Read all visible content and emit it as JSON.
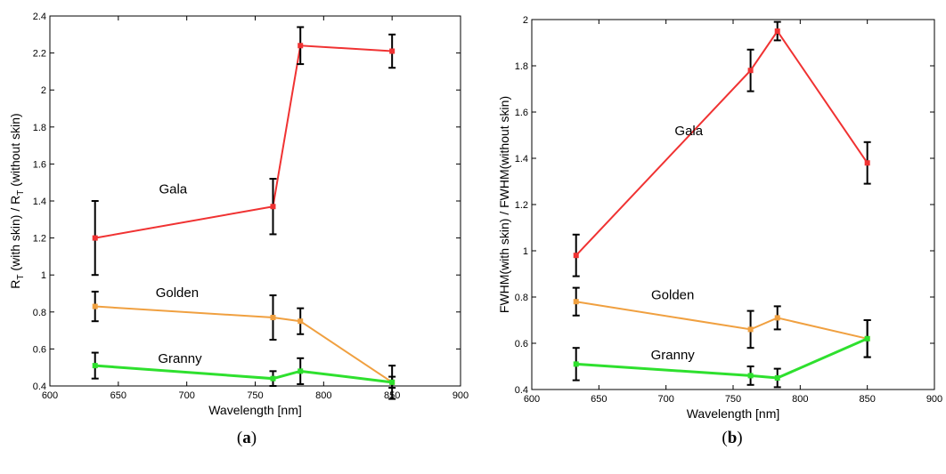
{
  "chart_data": [
    {
      "type": "line",
      "panel_label": "a",
      "xlabel": "Wavelength [nm]",
      "ylabel": "R_T (with skin) / R_T (without skin)",
      "ylabel_parts": {
        "r1": "R",
        "s1": "T",
        "mid": " (with skin) / R",
        "s2": "T",
        "end": " (without skin)"
      },
      "xlim": [
        600,
        900
      ],
      "ylim": [
        0.4,
        2.4
      ],
      "xticks": [
        "600",
        "650",
        "700",
        "750",
        "800",
        "850",
        "900"
      ],
      "yticks": [
        "0.4",
        "0.6",
        "0.8",
        "1",
        "1.2",
        "1.4",
        "1.6",
        "1.8",
        "2",
        "2.2",
        "2.4"
      ],
      "grid": false,
      "series": [
        {
          "name": "Gala",
          "color": "#f03232",
          "label_at": [
            690,
            1.44
          ],
          "points": [
            {
              "x": 633,
              "y": 1.2,
              "err": 0.2
            },
            {
              "x": 763,
              "y": 1.37,
              "err": 0.15
            },
            {
              "x": 783,
              "y": 2.24,
              "err": 0.1
            },
            {
              "x": 850,
              "y": 2.21,
              "err": 0.09
            }
          ]
        },
        {
          "name": "Golden",
          "color": "#f0a040",
          "label_at": [
            693,
            0.88
          ],
          "points": [
            {
              "x": 633,
              "y": 0.83,
              "err": 0.08
            },
            {
              "x": 763,
              "y": 0.77,
              "err": 0.12
            },
            {
              "x": 783,
              "y": 0.75,
              "err": 0.07
            },
            {
              "x": 850,
              "y": 0.42,
              "err": 0.09
            }
          ]
        },
        {
          "name": "Granny",
          "color": "#2ee02e",
          "label_at": [
            695,
            0.525
          ],
          "points": [
            {
              "x": 633,
              "y": 0.51,
              "err": 0.07
            },
            {
              "x": 763,
              "y": 0.44,
              "err": 0.04
            },
            {
              "x": 783,
              "y": 0.48,
              "err": 0.07
            },
            {
              "x": 850,
              "y": 0.42,
              "err": 0.03
            }
          ]
        }
      ]
    },
    {
      "type": "line",
      "panel_label": "b",
      "xlabel": "Wavelength [nm]",
      "ylabel": "FWHM(with skin) / FWHM(without skin)",
      "xlim": [
        600,
        900
      ],
      "ylim": [
        0.4,
        2
      ],
      "xticks": [
        "600",
        "650",
        "700",
        "750",
        "800",
        "850",
        "900"
      ],
      "yticks": [
        "0.4",
        "0.6",
        "0.8",
        "1",
        "1.2",
        "1.4",
        "1.6",
        "1.8",
        "2"
      ],
      "grid": false,
      "series": [
        {
          "name": "Gala",
          "color": "#f03232",
          "label_at": [
            717,
            1.5
          ],
          "points": [
            {
              "x": 633,
              "y": 0.98,
              "err": 0.09
            },
            {
              "x": 763,
              "y": 1.78,
              "err": 0.09
            },
            {
              "x": 783,
              "y": 1.95,
              "err": 0.04
            },
            {
              "x": 850,
              "y": 1.38,
              "err": 0.09
            }
          ]
        },
        {
          "name": "Golden",
          "color": "#f0a040",
          "label_at": [
            705,
            0.79
          ],
          "points": [
            {
              "x": 633,
              "y": 0.78,
              "err": 0.06
            },
            {
              "x": 763,
              "y": 0.66,
              "err": 0.08
            },
            {
              "x": 783,
              "y": 0.71,
              "err": 0.05
            },
            {
              "x": 850,
              "y": 0.62,
              "err": 0.08
            }
          ]
        },
        {
          "name": "Granny",
          "color": "#2ee02e",
          "label_at": [
            705,
            0.53
          ],
          "points": [
            {
              "x": 633,
              "y": 0.51,
              "err": 0.07
            },
            {
              "x": 763,
              "y": 0.46,
              "err": 0.04
            },
            {
              "x": 783,
              "y": 0.45,
              "err": 0.04
            },
            {
              "x": 850,
              "y": 0.62,
              "err": 0.08
            }
          ]
        }
      ]
    }
  ]
}
